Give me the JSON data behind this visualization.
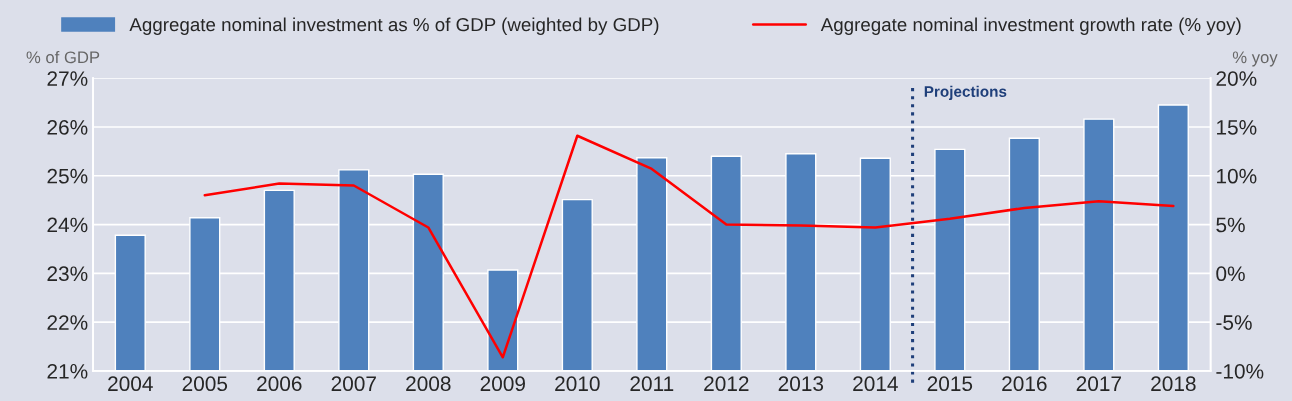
{
  "chart_data": {
    "type": "bar",
    "x": [
      2004,
      2005,
      2006,
      2007,
      2008,
      2009,
      2010,
      2011,
      2012,
      2013,
      2014,
      2015,
      2016,
      2017,
      2018
    ],
    "xlim": [
      2003.5,
      2018.5
    ],
    "xticks": [
      2004,
      2005,
      2006,
      2007,
      2008,
      2009,
      2010,
      2011,
      2012,
      2013,
      2014,
      2015,
      2016,
      2017,
      2018
    ],
    "series": [
      {
        "name": "Aggregate nominal investment as % of GDP (weighted by GDP)",
        "color": "#4f81bd",
        "values": [
          23.78,
          24.14,
          24.7,
          25.12,
          25.03,
          23.07,
          24.51,
          25.37,
          25.4,
          25.45,
          25.36,
          25.54,
          25.77,
          26.16,
          26.45
        ]
      },
      {
        "name": "Aggregate nominal investment growth rate (% yoy)",
        "type": "line",
        "axis": "y2",
        "color": "#ff0000",
        "values": [
          null,
          8.0,
          9.2,
          9.0,
          4.7,
          -8.6,
          14.1,
          10.7,
          5.0,
          4.9,
          4.7,
          5.6,
          6.7,
          7.4,
          6.9
        ]
      }
    ],
    "ylabel": "% of GDP",
    "y2label": "% yoy",
    "ylim": [
      21,
      27
    ],
    "yticks": [
      {
        "value": 21,
        "label": "21%"
      },
      {
        "value": 22,
        "label": "22%"
      },
      {
        "value": 23,
        "label": "23%"
      },
      {
        "value": 24,
        "label": "24%"
      },
      {
        "value": 25,
        "label": "25%"
      },
      {
        "value": 26,
        "label": "26%"
      },
      {
        "value": 27,
        "label": "27%"
      }
    ],
    "y2lim": [
      -10,
      20
    ],
    "y2ticks": [
      {
        "value": -10,
        "label": "-10%"
      },
      {
        "value": -5,
        "label": "-5%"
      },
      {
        "value": 0,
        "label": "0%"
      },
      {
        "value": 5,
        "label": "5%"
      },
      {
        "value": 10,
        "label": "10%"
      },
      {
        "value": 15,
        "label": "15%"
      },
      {
        "value": 20,
        "label": "20%"
      }
    ],
    "ref_lines": [
      {
        "axis": "x",
        "value": 2014.5,
        "label": "Projections",
        "color": "#1f3f7a",
        "line_style": "dotted"
      }
    ],
    "grid": "y",
    "legend": "top",
    "marker": "none",
    "line_style": "solid"
  }
}
